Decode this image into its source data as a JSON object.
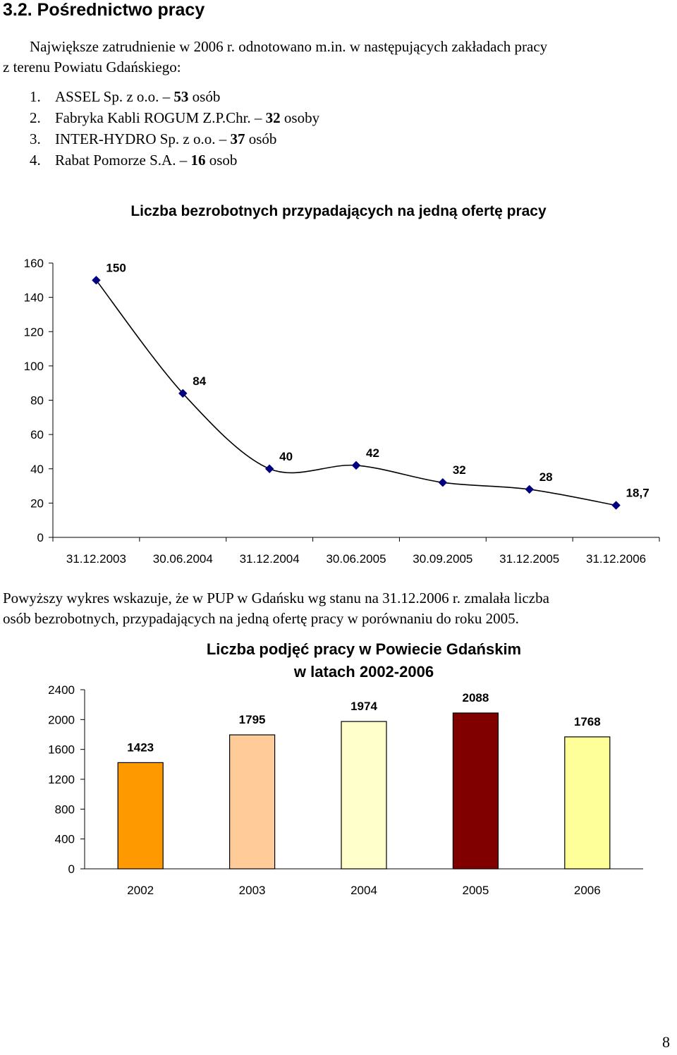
{
  "section": {
    "title": "3.2. Pośrednictwo pracy"
  },
  "intro": {
    "line1": "Największe zatrudnienie w 2006 r. odnotowano m.in. w następujących zakładach pracy",
    "line2": "z terenu Powiatu Gdańskiego:"
  },
  "employers": [
    {
      "num": "1.",
      "name": "ASSEL Sp. z o.o. –",
      "count": "53",
      "unit": "osób"
    },
    {
      "num": "2.",
      "name": "Fabryka Kabli ROGUM Z.P.Chr. –",
      "count": "32",
      "unit": "osoby"
    },
    {
      "num": "3.",
      "name": "INTER-HYDRO Sp. z o.o. –",
      "count": "37",
      "unit": "osób"
    },
    {
      "num": "4.",
      "name": "Rabat Pomorze S.A. –",
      "count": "16",
      "unit": "osob"
    }
  ],
  "note": {
    "line1": "Powyższy wykres wskazuje, że w PUP w Gdańsku wg stanu na 31.12.2006 r. zmalała liczba",
    "line2": "osób bezrobotnych, przypadających na jedną ofertę pracy w porównaniu do roku 2005."
  },
  "page_number": "8",
  "chart_data": [
    {
      "type": "line",
      "title": "Liczba bezrobotnych przypadających na jedną ofertę pracy",
      "categories": [
        "31.12.2003",
        "30.06.2004",
        "31.12.2004",
        "30.06.2005",
        "30.09.2005",
        "31.12.2005",
        "31.12.2006"
      ],
      "values": [
        150,
        84,
        40,
        42,
        32,
        28,
        18.7
      ],
      "data_labels": [
        "150",
        "84",
        "40",
        "42",
        "32",
        "28",
        "18,7"
      ],
      "y_ticks": [
        "0",
        "20",
        "40",
        "60",
        "80",
        "100",
        "120",
        "140",
        "160"
      ],
      "ylim": [
        0,
        160
      ],
      "marker": "diamond",
      "smooth": true,
      "line_color": "#000000",
      "marker_color": "#000080",
      "grid": false,
      "legend": false
    },
    {
      "type": "bar",
      "title_lines": [
        "Liczba podjęć pracy w Powiecie Gdańskim",
        "w latach 2002-2006"
      ],
      "categories": [
        "2002",
        "2003",
        "2004",
        "2005",
        "2006"
      ],
      "values": [
        1423,
        1795,
        1974,
        2088,
        1768
      ],
      "data_labels": [
        "1423",
        "1795",
        "1974",
        "2088",
        "1768"
      ],
      "y_ticks": [
        "0",
        "400",
        "800",
        "1200",
        "1600",
        "2000",
        "2400"
      ],
      "ylim": [
        0,
        2400
      ],
      "bar_colors": [
        "#FF9900",
        "#FFCC99",
        "#FFFFCC",
        "#800000",
        "#FFFF99"
      ],
      "grid": false,
      "legend": false
    }
  ]
}
